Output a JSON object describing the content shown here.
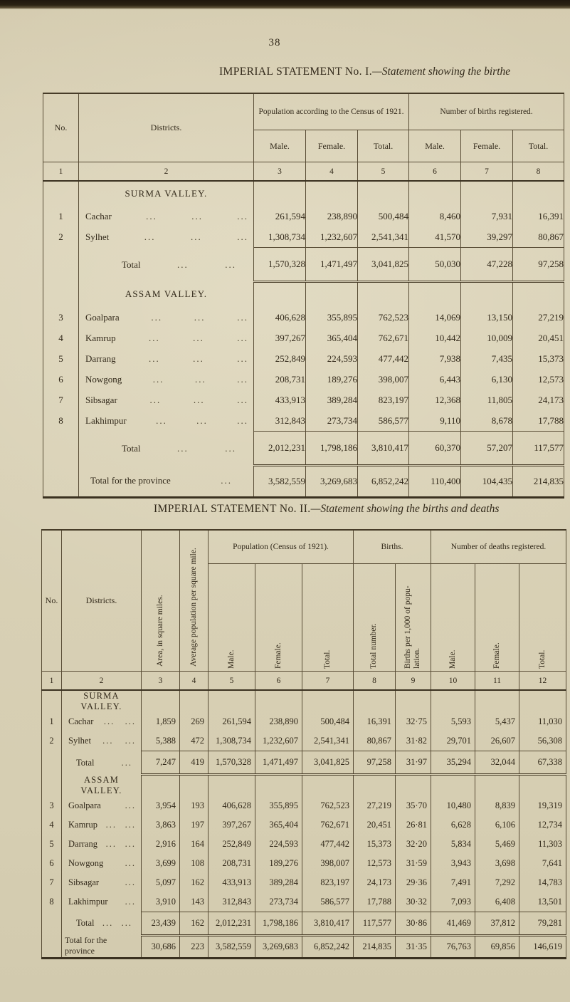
{
  "page": {
    "number": "38"
  },
  "leader_dots": "...",
  "statement1": {
    "title_roman": "IMPERIAL STATEMENT No. I.",
    "title_italic": "—Statement showing the birthe",
    "header": {
      "no": "No.",
      "districts": "Districts.",
      "population_group": "Population according to the Census of 1921.",
      "births_group": "Number of births registered.",
      "population_sub": [
        "Male.",
        "Female.",
        "Total."
      ],
      "births_sub": [
        "Male.",
        "Female.",
        "Total."
      ]
    },
    "column_numbers": [
      "1",
      "2",
      "3",
      "4",
      "5",
      "6",
      "7",
      "8"
    ],
    "sections": [
      {
        "heading": "SURMA VALLEY.",
        "rows": [
          {
            "no": "1",
            "name": "Cachar",
            "dots": 3,
            "values": [
              "261,594",
              "238,890",
              "500,484",
              "8,460",
              "7,931",
              "16,391"
            ]
          },
          {
            "no": "2",
            "name": "Sylhet",
            "dots": 3,
            "values": [
              "1,308,734",
              "1,232,607",
              "2,541,341",
              "41,570",
              "39,297",
              "80,867"
            ]
          }
        ],
        "total": {
          "label": "Total",
          "dots": 2,
          "values": [
            "1,570,328",
            "1,471,497",
            "3,041,825",
            "50,030",
            "47,228",
            "97,258"
          ]
        }
      },
      {
        "heading": "ASSAM VALLEY.",
        "rows": [
          {
            "no": "3",
            "name": "Goalpara",
            "dots": 3,
            "values": [
              "406,628",
              "355,895",
              "762,523",
              "14,069",
              "13,150",
              "27,219"
            ]
          },
          {
            "no": "4",
            "name": "Kamrup",
            "dots": 3,
            "values": [
              "397,267",
              "365,404",
              "762,671",
              "10,442",
              "10,009",
              "20,451"
            ]
          },
          {
            "no": "5",
            "name": "Darrang",
            "dots": 3,
            "values": [
              "252,849",
              "224,593",
              "477,442",
              "7,938",
              "7,435",
              "15,373"
            ]
          },
          {
            "no": "6",
            "name": "Nowgong",
            "dots": 3,
            "values": [
              "208,731",
              "189,276",
              "398,007",
              "6,443",
              "6,130",
              "12,573"
            ]
          },
          {
            "no": "7",
            "name": "Sibsagar",
            "dots": 3,
            "values": [
              "433,913",
              "389,284",
              "823,197",
              "12,368",
              "11,805",
              "24,173"
            ]
          },
          {
            "no": "8",
            "name": "Lakhimpur",
            "dots": 3,
            "values": [
              "312,843",
              "273,734",
              "586,577",
              "9,110",
              "8,678",
              "17,788"
            ]
          }
        ],
        "total": {
          "label": "Total",
          "dots": 2,
          "values": [
            "2,012,231",
            "1,798,186",
            "3,810,417",
            "60,370",
            "57,207",
            "117,577"
          ]
        }
      }
    ],
    "province_total": {
      "label": "Total for the  province",
      "dots": 1,
      "values": [
        "3,582,559",
        "3,269,683",
        "6,852,242",
        "110,400",
        "104,435",
        "214,835"
      ]
    }
  },
  "statement2": {
    "title_roman": "IMPERIAL STATEMENT No. II.",
    "title_italic": "—Statement showing the births and deaths",
    "header": {
      "no": "No.",
      "districts": "Districts.",
      "area": "Area, in square miles.",
      "avg_population": "Average population per square mile.",
      "population_group": "Population (Census of 1921).",
      "births_group": "Births.",
      "deaths_group": "Number of deaths registered.",
      "population_sub": [
        "Male.",
        "Female.",
        "Total."
      ],
      "births_sub": [
        "Total number.",
        "Births per 1,000 of popu-lation."
      ],
      "deaths_sub": [
        "Male.",
        "Female.",
        "Total."
      ]
    },
    "column_numbers": [
      "1",
      "2",
      "3",
      "4",
      "5",
      "6",
      "7",
      "8",
      "9",
      "10",
      "11",
      "12"
    ],
    "sections": [
      {
        "heading": "SURMA VALLEY.",
        "rows": [
          {
            "no": "1",
            "name": "Cachar",
            "dots": 2,
            "values": [
              "1,859",
              "269",
              "261,594",
              "238,890",
              "500,484",
              "16,391",
              "32·75",
              "5,593",
              "5,437",
              "11,030"
            ]
          },
          {
            "no": "2",
            "name": "Sylhet",
            "dots": 2,
            "values": [
              "5,388",
              "472",
              "1,308,734",
              "1,232,607",
              "2,541,341",
              "80,867",
              "31·82",
              "29,701",
              "26,607",
              "56,308"
            ]
          }
        ],
        "total": {
          "label": "Total",
          "dots": 1,
          "values": [
            "7,247",
            "419",
            "1,570,328",
            "1,471,497",
            "3,041,825",
            "97,258",
            "31·97",
            "35,294",
            "32,044",
            "67,338"
          ]
        }
      },
      {
        "heading": "ASSAM VALLEY.",
        "rows": [
          {
            "no": "3",
            "name": "Goalpara",
            "dots": 1,
            "values": [
              "3,954",
              "193",
              "406,628",
              "355,895",
              "762,523",
              "27,219",
              "35·70",
              "10,480",
              "8,839",
              "19,319"
            ]
          },
          {
            "no": "4",
            "name": "Kamrup",
            "dots": 2,
            "values": [
              "3,863",
              "197",
              "397,267",
              "365,404",
              "762,671",
              "20,451",
              "26·81",
              "6,628",
              "6,106",
              "12,734"
            ]
          },
          {
            "no": "5",
            "name": "Darrang",
            "dots": 2,
            "values": [
              "2,916",
              "164",
              "252,849",
              "224,593",
              "477,442",
              "15,373",
              "32·20",
              "5,834",
              "5,469",
              "11,303"
            ]
          },
          {
            "no": "6",
            "name": "Nowgong",
            "dots": 1,
            "values": [
              "3,699",
              "108",
              "208,731",
              "189,276",
              "398,007",
              "12,573",
              "31·59",
              "3,943",
              "3,698",
              "7,641"
            ]
          },
          {
            "no": "7",
            "name": "Sibsagar",
            "dots": 1,
            "values": [
              "5,097",
              "162",
              "433,913",
              "389,284",
              "823,197",
              "24,173",
              "29·36",
              "7,491",
              "7,292",
              "14,783"
            ]
          },
          {
            "no": "8",
            "name": "Lakhimpur",
            "dots": 1,
            "values": [
              "3,910",
              "143",
              "312,843",
              "273,734",
              "586,577",
              "17,788",
              "30·32",
              "7,093",
              "6,408",
              "13,501"
            ]
          }
        ],
        "total": {
          "label": "Total",
          "dots": 2,
          "values": [
            "23,439",
            "162",
            "2,012,231",
            "1,798,186",
            "3,810,417",
            "117,577",
            "30·86",
            "41,469",
            "37,812",
            "79,281"
          ]
        }
      }
    ],
    "province_total": {
      "label": "Total for the province",
      "dots": 0,
      "values": [
        "30,686",
        "223",
        "3,582,559",
        "3,269,683",
        "6,852,242",
        "214,835",
        "31·35",
        "76,763",
        "69,856",
        "146,619"
      ]
    }
  }
}
